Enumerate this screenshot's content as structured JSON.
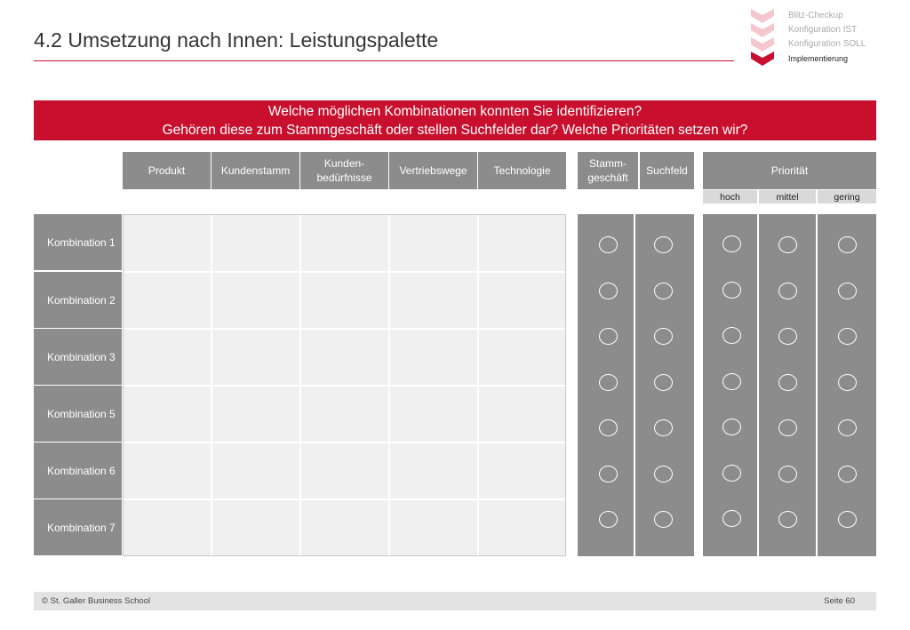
{
  "title": "4.2 Umsetzung nach Innen: Leistungspalette",
  "nav": {
    "items": [
      "Blitz-Checkup",
      "Konfiguration IST",
      "Konfiguration SOLL",
      "Implementierung"
    ],
    "active_index": 3,
    "accent_color": "#c8102e",
    "inactive_color": "#f4c7ce"
  },
  "banner": {
    "line1": "Welche möglichen Kombinationen konnten Sie identifizieren?",
    "line2": "Gehören diese zum Stammgeschäft oder stellen Suchfelder dar? Welche Prioritäten setzen wir?"
  },
  "columns": {
    "produkt": "Produkt",
    "kundenstamm": "Kundenstamm",
    "kunden_line1": "Kunden-",
    "kunden_line2": "bedürfnisse",
    "vertriebswege": "Vertriebswege",
    "technologie": "Technologie",
    "stamm_line1": "Stamm-",
    "stamm_line2": "geschäft",
    "suchfeld": "Suchfeld",
    "prioritaet": "Priorität",
    "hoch": "hoch",
    "mittel": "mittel",
    "gering": "gering"
  },
  "rows": [
    "Kombination 1",
    "Kombination 2",
    "Kombination 3",
    "Kombination 5",
    "Kombination 6",
    "Kombination 7"
  ],
  "footer": {
    "copyright": "© St. Galler Business School",
    "page": "Seite 60"
  },
  "colors": {
    "brand_red": "#c8102e",
    "header_gray": "#8c8c8c",
    "cell_bg": "#f0f0f0"
  }
}
